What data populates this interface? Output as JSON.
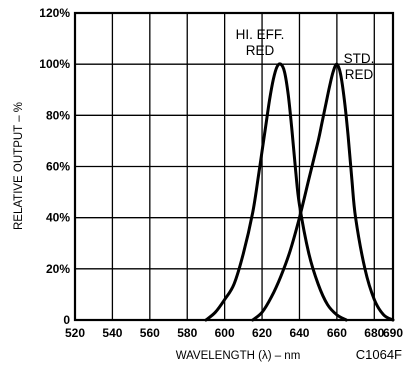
{
  "chart_data": {
    "type": "line",
    "title": "",
    "xlabel": "WAVELENGTH (λ) – nm",
    "ylabel": "RELATIVE OUTPUT – %",
    "figure_id": "C1064F",
    "xlim": [
      520,
      690
    ],
    "ylim": [
      0,
      120
    ],
    "x_ticks": [
      520,
      540,
      560,
      580,
      600,
      620,
      640,
      660,
      680,
      690
    ],
    "y_ticks": [
      0,
      20,
      40,
      60,
      80,
      100,
      120
    ],
    "y_tick_labels": [
      "0",
      "20%",
      "40%",
      "60%",
      "80%",
      "100%",
      "120%"
    ],
    "grid": true,
    "line_color": "#000000",
    "annotations": [
      {
        "id": "hi-eff",
        "lines": [
          "HI. EFF.",
          "RED"
        ]
      },
      {
        "id": "std",
        "lines": [
          "STD.",
          "RED"
        ]
      }
    ],
    "series": [
      {
        "id": "hi-eff-red",
        "x": [
          590,
          595,
          600,
          605,
          610,
          615,
          618,
          620,
          622,
          624,
          626,
          628,
          630,
          632,
          634,
          636,
          638,
          640,
          645,
          650,
          655,
          660,
          665
        ],
        "y": [
          0,
          3,
          8,
          14,
          26,
          42,
          56,
          66,
          76,
          86,
          94,
          99,
          100,
          97,
          88,
          74,
          58,
          45,
          26,
          14,
          6,
          2,
          0
        ]
      },
      {
        "id": "std-red",
        "x": [
          615,
          620,
          625,
          630,
          635,
          640,
          645,
          650,
          652,
          654,
          656,
          658,
          660,
          662,
          664,
          666,
          668,
          670,
          675,
          680,
          685,
          690
        ],
        "y": [
          0,
          3,
          9,
          17,
          27,
          40,
          55,
          70,
          77,
          84,
          91,
          97,
          100,
          96,
          86,
          72,
          55,
          40,
          20,
          8,
          2,
          0
        ]
      }
    ]
  }
}
